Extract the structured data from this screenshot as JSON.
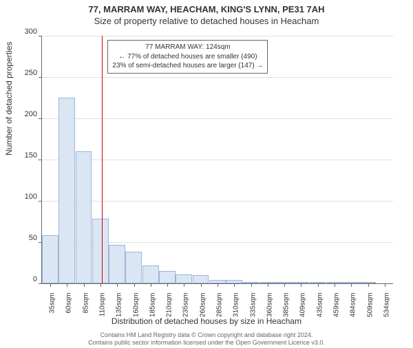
{
  "title_main": "77, MARRAM WAY, HEACHAM, KING'S LYNN, PE31 7AH",
  "title_sub": "Size of property relative to detached houses in Heacham",
  "y_axis_label": "Number of detached properties",
  "x_axis_label": "Distribution of detached houses by size in Heacham",
  "footer_line1": "Contains HM Land Registry data © Crown copyright and database right 2024.",
  "footer_line2": "Contains public sector information licensed under the Open Government Licence v3.0.",
  "chart": {
    "type": "histogram",
    "ylim": [
      0,
      300
    ],
    "y_ticks": [
      0,
      50,
      100,
      150,
      200,
      250,
      300
    ],
    "bar_color": "#dbe6f5",
    "bar_border": "#9cb5d6",
    "axis_color": "#666666",
    "grid_color": "#e0e0e0",
    "ref_line_color": "#cc0000",
    "ref_line_bin_index": 3.6,
    "bins": [
      {
        "label": "35sqm",
        "count": 58
      },
      {
        "label": "60sqm",
        "count": 225
      },
      {
        "label": "85sqm",
        "count": 160
      },
      {
        "label": "110sqm",
        "count": 78
      },
      {
        "label": "135sqm",
        "count": 47
      },
      {
        "label": "160sqm",
        "count": 38
      },
      {
        "label": "185sqm",
        "count": 22
      },
      {
        "label": "210sqm",
        "count": 15
      },
      {
        "label": "235sqm",
        "count": 11
      },
      {
        "label": "260sqm",
        "count": 10
      },
      {
        "label": "285sqm",
        "count": 4
      },
      {
        "label": "310sqm",
        "count": 4
      },
      {
        "label": "335sqm",
        "count": 2
      },
      {
        "label": "360sqm",
        "count": 2
      },
      {
        "label": "385sqm",
        "count": 1
      },
      {
        "label": "409sqm",
        "count": 1
      },
      {
        "label": "435sqm",
        "count": 1
      },
      {
        "label": "459sqm",
        "count": 1
      },
      {
        "label": "484sqm",
        "count": 2
      },
      {
        "label": "509sqm",
        "count": 1
      },
      {
        "label": "534sqm",
        "count": 0
      }
    ],
    "callout": {
      "line1": "77 MARRAM WAY: 124sqm",
      "line2": "← 77% of detached houses are smaller (490)",
      "line3": "23% of semi-detached houses are larger (147) →"
    }
  }
}
